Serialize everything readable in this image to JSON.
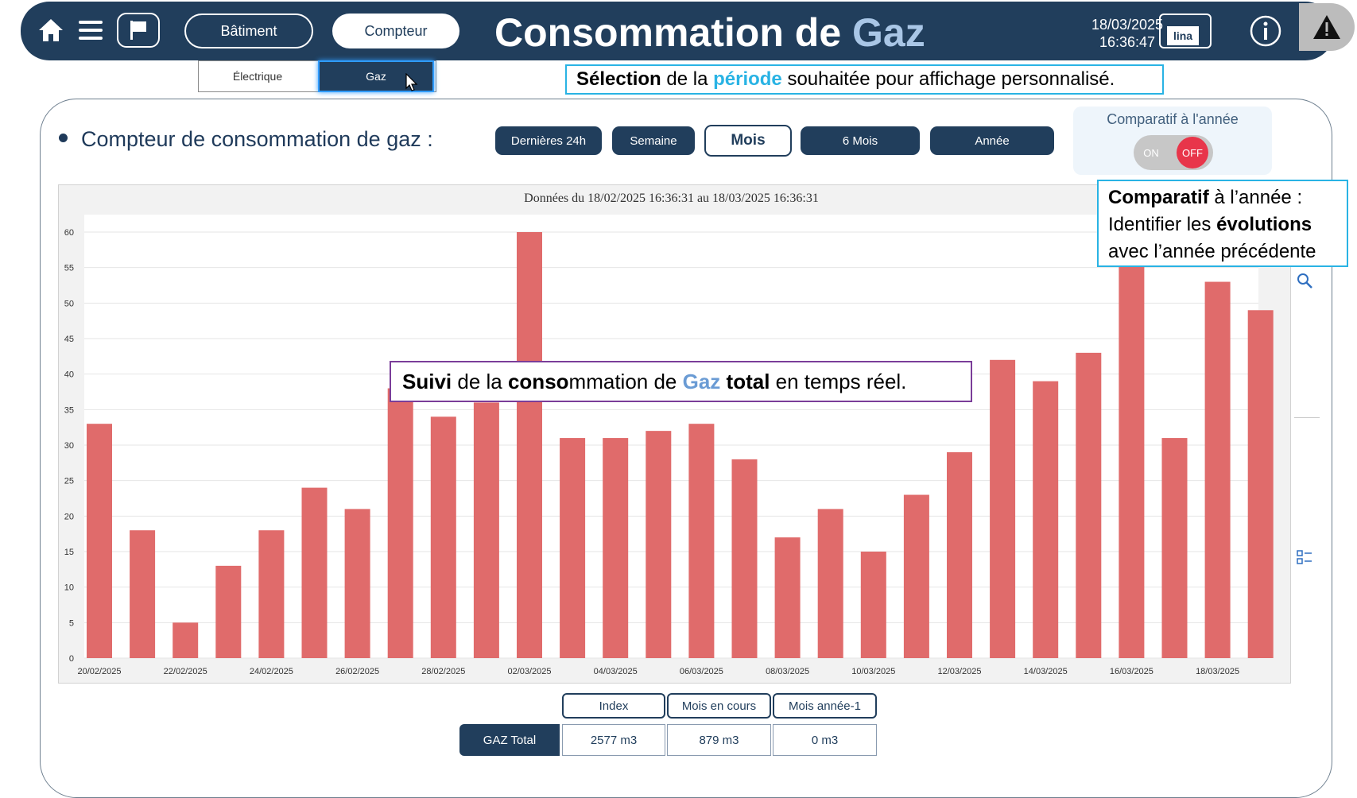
{
  "topbar": {
    "title_part1": "Consommation de ",
    "title_part2": "Gaz",
    "nav_batiment": "Bâtiment",
    "nav_compteur": "Compteur",
    "date": "18/03/2025",
    "time": "16:36:47",
    "logo_text": "lina",
    "icons": [
      "home-icon",
      "menu-icon",
      "flag-icon",
      "info-icon",
      "alert-icon"
    ],
    "colors": {
      "bar": "#213e5c",
      "accent": "#a9c6e6"
    }
  },
  "subtabs": {
    "electrique": "Électrique",
    "gaz": "Gaz"
  },
  "callouts": {
    "periode": {
      "b1": "Sélection",
      "t1": " de la ",
      "a1": "période",
      "t2": " souhaitée pour affichage personnalisé."
    },
    "comparatif": {
      "b1": "Comparatif",
      "t1": " à l’année :",
      "t2": "Identifier les ",
      "b2": "évolutions",
      "t3": "avec l’année précédente"
    },
    "suivi": {
      "b1": "Suivi",
      "t1": " de la ",
      "b2": "conso",
      "t2": "mmation de ",
      "a1": "Gaz",
      "t3": " ",
      "b3": "total",
      "t4": " en temps réel."
    }
  },
  "section_title": "Compteur de consommation de gaz :",
  "periods": {
    "p24h": "Dernières 24h",
    "semaine": "Semaine",
    "mois": "Mois",
    "six_mois": "6 Mois",
    "annee": "Année",
    "selected": "Mois"
  },
  "comparatif": {
    "label": "Comparatif à l'année",
    "on": "ON",
    "off": "OFF",
    "state": "OFF",
    "off_color": "#e8354a"
  },
  "chart_data": {
    "type": "bar",
    "title": "Données du 18/02/2025 16:36:31 au 18/03/2025 16:36:31",
    "xlabel": "",
    "ylabel": "",
    "ylim": [
      0,
      60
    ],
    "yticks": [
      0,
      5,
      10,
      15,
      20,
      25,
      30,
      35,
      40,
      45,
      50,
      55,
      60
    ],
    "grid": true,
    "bar_color": "#e06b6b",
    "categories": [
      "20/02/2025",
      "21/02/2025",
      "22/02/2025",
      "23/02/2025",
      "24/02/2025",
      "25/02/2025",
      "26/02/2025",
      "27/02/2025",
      "28/02/2025",
      "01/03/2025",
      "02/03/2025",
      "03/03/2025",
      "04/03/2025",
      "05/03/2025",
      "06/03/2025",
      "07/03/2025",
      "08/03/2025",
      "09/03/2025",
      "10/03/2025",
      "11/03/2025",
      "12/03/2025",
      "13/03/2025",
      "14/03/2025",
      "15/03/2025",
      "16/03/2025",
      "17/03/2025",
      "18/03/2025",
      "19/03/2025"
    ],
    "values": [
      33,
      18,
      5,
      13,
      18,
      24,
      21,
      38,
      34,
      36,
      60,
      31,
      31,
      32,
      33,
      28,
      17,
      21,
      15,
      23,
      29,
      42,
      39,
      43,
      62,
      31,
      53,
      49
    ],
    "xtick_labels": [
      "20/02/2025",
      "22/02/2025",
      "24/02/2025",
      "26/02/2025",
      "28/02/2025",
      "02/03/2025",
      "04/03/2025",
      "06/03/2025",
      "08/03/2025",
      "10/03/2025",
      "12/03/2025",
      "14/03/2025",
      "16/03/2025",
      "18/03/2025"
    ]
  },
  "table": {
    "headers": {
      "index": "Index",
      "mois_en_cours": "Mois en cours",
      "mois_annee_1": "Mois année-1"
    },
    "row_label": "GAZ Total",
    "values": {
      "index": "2577 m3",
      "mois_en_cours": "879 m3",
      "mois_annee_1": "0 m3"
    }
  }
}
